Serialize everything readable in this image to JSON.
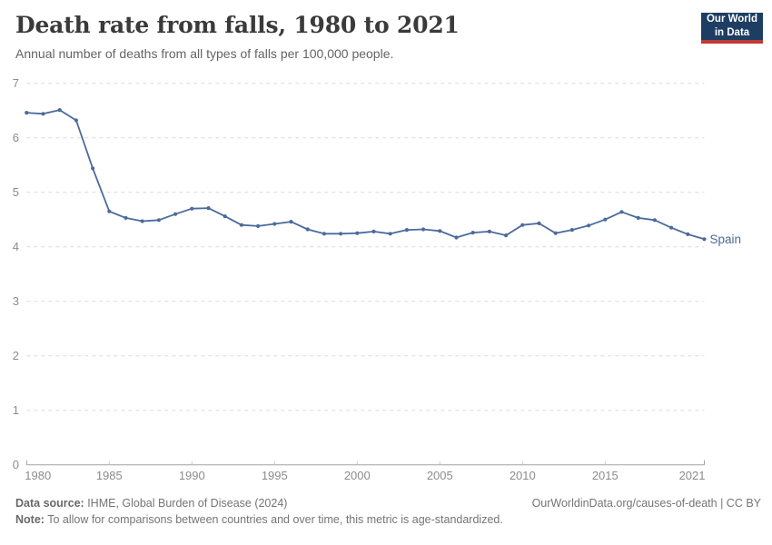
{
  "header": {
    "title": "Death rate from falls, 1980 to 2021",
    "subtitle": "Annual number of deaths from all types of falls per 100,000 people.",
    "logo_line1": "Our World",
    "logo_line2": "in Data"
  },
  "chart_data": {
    "type": "line",
    "title": "Death rate from falls, 1980 to 2021",
    "ylabel": "",
    "xlabel": "",
    "entity_label": "Spain",
    "line_color": "#4c6a9c",
    "grid": "dashed horizontal",
    "legend_position": "end-of-line label",
    "xlim": [
      1980,
      2021
    ],
    "ylim": [
      0,
      7
    ],
    "yticks": [
      0,
      1,
      2,
      3,
      4,
      5,
      6,
      7
    ],
    "xticks": [
      1980,
      1985,
      1990,
      1995,
      2000,
      2005,
      2010,
      2015,
      2021
    ],
    "x": [
      1980,
      1981,
      1982,
      1983,
      1984,
      1985,
      1986,
      1987,
      1988,
      1989,
      1990,
      1991,
      1992,
      1993,
      1994,
      1995,
      1996,
      1997,
      1998,
      1999,
      2000,
      2001,
      2002,
      2003,
      2004,
      2005,
      2006,
      2007,
      2008,
      2009,
      2010,
      2011,
      2012,
      2013,
      2014,
      2015,
      2016,
      2017,
      2018,
      2019,
      2020,
      2021
    ],
    "series": [
      {
        "name": "Spain",
        "values": [
          6.46,
          6.44,
          6.51,
          6.32,
          5.44,
          4.65,
          4.53,
          4.47,
          4.49,
          4.6,
          4.7,
          4.71,
          4.56,
          4.4,
          4.38,
          4.42,
          4.46,
          4.32,
          4.24,
          4.24,
          4.25,
          4.28,
          4.24,
          4.31,
          4.32,
          4.29,
          4.17,
          4.26,
          4.28,
          4.21,
          4.4,
          4.43,
          4.25,
          4.31,
          4.39,
          4.5,
          4.64,
          4.53,
          4.49,
          4.35,
          4.23,
          4.14
        ]
      }
    ]
  },
  "footer": {
    "source_label": "Data source:",
    "source_text": " IHME, Global Burden of Disease (2024)",
    "attribution": "OurWorldinData.org/causes-of-death | CC BY",
    "note_label": "Note:",
    "note_text": " To allow for comparisons between countries and over time, this metric is age-standardized."
  }
}
